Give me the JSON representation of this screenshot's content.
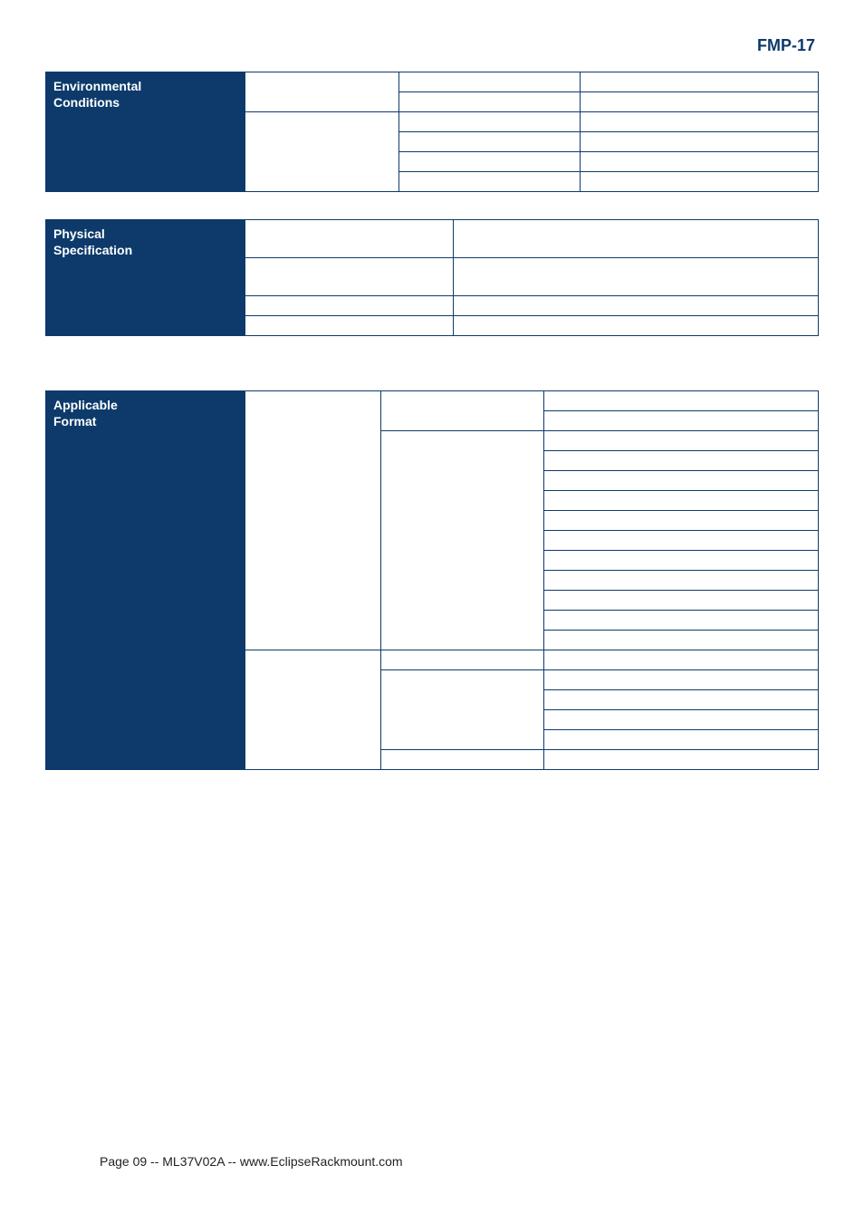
{
  "header": {
    "title": "FMP-17"
  },
  "colors": {
    "brand": "#0d3a6b",
    "text": "#222222",
    "white": "#ffffff"
  },
  "tables": {
    "environmental": {
      "label": "Environmental\nConditions",
      "rows": [
        {
          "c1": "",
          "c2": "",
          "c3": ""
        },
        {
          "c1": "",
          "c2": "",
          "c3": ""
        },
        {
          "c1": "",
          "c2": "",
          "c3": ""
        },
        {
          "c1": "",
          "c2": "",
          "c3": ""
        },
        {
          "c1": "",
          "c2": "",
          "c3": ""
        },
        {
          "c1": "",
          "c2": "",
          "c3": ""
        }
      ]
    },
    "physical": {
      "label": "Physical\nSpecification",
      "rows": [
        {
          "c1": "",
          "c2": ""
        },
        {
          "c1": "",
          "c2": ""
        },
        {
          "c1": "",
          "c2": ""
        },
        {
          "c1": "",
          "c2": ""
        }
      ]
    },
    "format": {
      "label": "Applicable\nFormat",
      "rows": [
        {
          "c1": "",
          "c2": "",
          "c3": ""
        },
        {
          "c1": "",
          "c2": "",
          "c3": ""
        },
        {
          "c1": "",
          "c2": "",
          "c3": ""
        },
        {
          "c1": "",
          "c2": "",
          "c3": ""
        },
        {
          "c1": "",
          "c2": "",
          "c3": ""
        },
        {
          "c1": "",
          "c2": "",
          "c3": ""
        },
        {
          "c1": "",
          "c2": "",
          "c3": ""
        },
        {
          "c1": "",
          "c2": "",
          "c3": ""
        },
        {
          "c1": "",
          "c2": "",
          "c3": ""
        },
        {
          "c1": "",
          "c2": "",
          "c3": ""
        },
        {
          "c1": "",
          "c2": "",
          "c3": ""
        },
        {
          "c1": "",
          "c2": "",
          "c3": ""
        },
        {
          "c1": "",
          "c2": "",
          "c3": ""
        },
        {
          "c1": "",
          "c2": "",
          "c3": ""
        },
        {
          "c1": "",
          "c2": "",
          "c3": ""
        },
        {
          "c1": "",
          "c2": "",
          "c3": ""
        },
        {
          "c1": "",
          "c2": "",
          "c3": ""
        },
        {
          "c1": "",
          "c2": "",
          "c3": ""
        },
        {
          "c1": "",
          "c2": "",
          "c3": ""
        }
      ]
    }
  },
  "footer": {
    "text": "Page 09 -- ML37V02A -- www.EclipseRackmount.com"
  }
}
